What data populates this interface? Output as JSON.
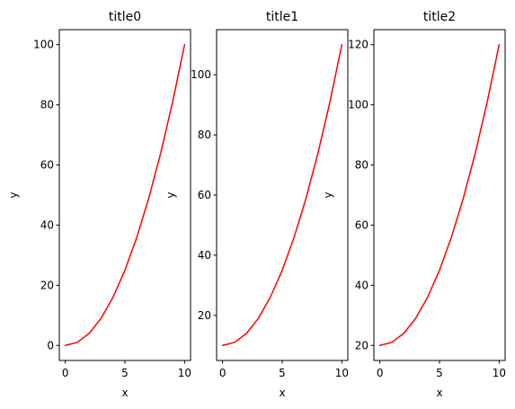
{
  "chart_data": [
    {
      "type": "line",
      "title": "title0",
      "xlabel": "x",
      "ylabel": "y",
      "xlim": [
        -0.5,
        10.5
      ],
      "ylim": [
        -5,
        105
      ],
      "xticks": [
        0,
        5,
        10
      ],
      "yticks": [
        0,
        20,
        40,
        60,
        80,
        100
      ],
      "grid": false,
      "series": [
        {
          "color": "#ff0000",
          "x": [
            0,
            1,
            2,
            3,
            4,
            5,
            6,
            7,
            8,
            9,
            10
          ],
          "y": [
            0,
            1,
            4,
            9,
            16,
            25,
            36,
            49,
            64,
            81,
            100
          ]
        }
      ]
    },
    {
      "type": "line",
      "title": "title1",
      "xlabel": "x",
      "ylabel": "y",
      "xlim": [
        -0.5,
        10.5
      ],
      "ylim": [
        5,
        115
      ],
      "xticks": [
        0,
        5,
        10
      ],
      "yticks": [
        20,
        40,
        60,
        80,
        100
      ],
      "grid": false,
      "series": [
        {
          "color": "#ff0000",
          "x": [
            0,
            1,
            2,
            3,
            4,
            5,
            6,
            7,
            8,
            9,
            10
          ],
          "y": [
            10,
            11,
            14,
            19,
            26,
            35,
            46,
            59,
            74,
            91,
            110
          ]
        }
      ]
    },
    {
      "type": "line",
      "title": "title2",
      "xlabel": "x",
      "ylabel": "y",
      "xlim": [
        -0.5,
        10.5
      ],
      "ylim": [
        15,
        125
      ],
      "xticks": [
        0,
        5,
        10
      ],
      "yticks": [
        20,
        40,
        60,
        80,
        100,
        120
      ],
      "grid": false,
      "series": [
        {
          "color": "#ff0000",
          "x": [
            0,
            1,
            2,
            3,
            4,
            5,
            6,
            7,
            8,
            9,
            10
          ],
          "y": [
            20,
            21,
            24,
            29,
            36,
            45,
            56,
            69,
            84,
            101,
            120
          ]
        }
      ]
    }
  ]
}
